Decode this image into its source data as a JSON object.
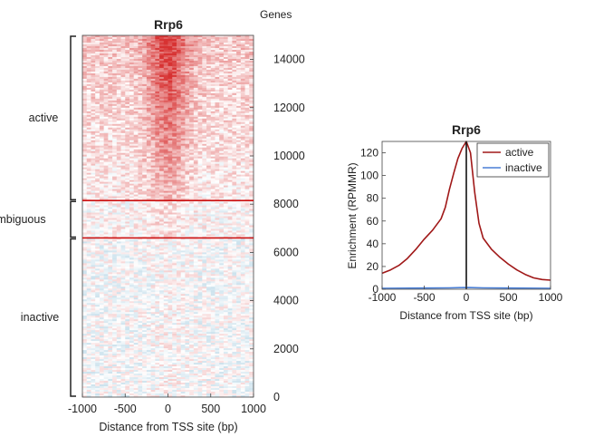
{
  "chart_data": [
    {
      "type": "heatmap",
      "title": "Rrp6",
      "xlabel": "Distance from TSS site (bp)",
      "ylabel": "Genes",
      "xlim": [
        -1000,
        1000
      ],
      "ylim": [
        0,
        15000
      ],
      "x_ticks": [
        "-1000",
        "-500",
        "0",
        "500",
        "1000"
      ],
      "y_ticks": [
        "0",
        "2000",
        "4000",
        "6000",
        "8000",
        "10000",
        "12000",
        "14000"
      ],
      "groups": [
        {
          "label": "active",
          "gene_range": [
            8150,
            15000
          ]
        },
        {
          "label": "ambiguous",
          "gene_range": [
            6600,
            8150
          ]
        },
        {
          "label": "inactive",
          "gene_range": [
            0,
            6600
          ]
        }
      ],
      "boundary_lines": [
        8150,
        6600
      ],
      "colors": {
        "high": "#d62728",
        "low": "#6fa8c8",
        "mid": "#ffffff",
        "boundary": "#cc1111"
      }
    },
    {
      "type": "line",
      "title": "Rrp6",
      "xlabel": "Distance from TSS site (bp)",
      "ylabel": "Enrichment (RPMMR)",
      "xlim": [
        -1000,
        1000
      ],
      "ylim": [
        0,
        130
      ],
      "x_ticks": [
        "-1000",
        "-500",
        "0",
        "500",
        "1000"
      ],
      "y_ticks": [
        "0",
        "20",
        "40",
        "60",
        "80",
        "100",
        "120"
      ],
      "legend_position": "top-right",
      "vline_x": 0,
      "series": [
        {
          "name": "active",
          "color": "#a01818",
          "x": [
            -1000,
            -900,
            -800,
            -700,
            -600,
            -500,
            -400,
            -300,
            -250,
            -200,
            -150,
            -100,
            -50,
            0,
            50,
            100,
            150,
            200,
            300,
            400,
            500,
            600,
            700,
            800,
            900,
            1000
          ],
          "y": [
            14,
            17,
            21,
            27,
            35,
            44,
            52,
            62,
            72,
            88,
            102,
            115,
            124,
            130,
            120,
            85,
            58,
            45,
            35,
            28,
            22,
            17,
            13,
            10,
            8.5,
            8
          ]
        },
        {
          "name": "inactive",
          "color": "#4a7fd6",
          "x": [
            -1000,
            -500,
            -200,
            0,
            200,
            500,
            1000
          ],
          "y": [
            0.8,
            1.0,
            1.2,
            1.5,
            1.2,
            1.0,
            0.8
          ]
        }
      ]
    }
  ]
}
